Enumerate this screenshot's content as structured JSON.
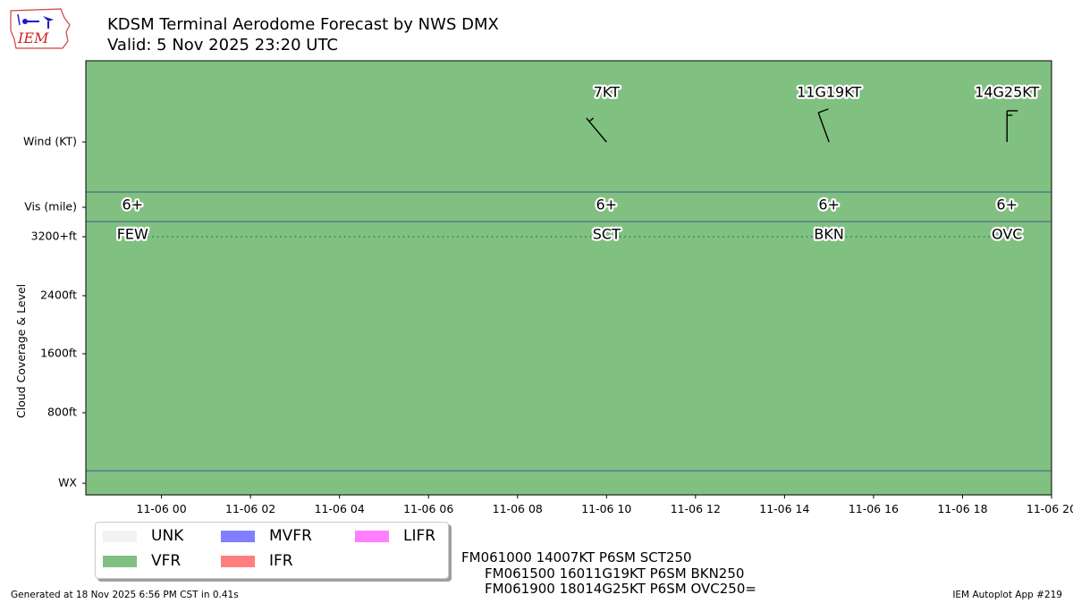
{
  "title": "KDSM Terminal Aerodome Forecast by NWS DMX",
  "subtitle": "Valid: 5 Nov 2025 23:20 UTC",
  "logo_text": "IEM",
  "chart_data": {
    "type": "timeline",
    "x_ticks": [
      "11-06 00",
      "11-06 02",
      "11-06 04",
      "11-06 06",
      "11-06 08",
      "11-06 10",
      "11-06 12",
      "11-06 14",
      "11-06 16",
      "11-06 18",
      "11-06 20"
    ],
    "x_range_hours": [
      -1.7,
      20.0
    ],
    "y_rows": [
      "Wind (KT)",
      "Vis (mile)",
      "WX"
    ],
    "y_cloud_ticks": [
      "3200+ft",
      "2400ft",
      "1600ft",
      "800ft"
    ],
    "y_cloud_label": "Cloud Coverage & Level",
    "background_category": "VFR",
    "forecasts": [
      {
        "hour": -0.65,
        "wind_label": "",
        "wind_dir_deg": null,
        "wind_speed_kt": null,
        "wind_gust_kt": null,
        "vis": "6+",
        "cloud": "FEW",
        "cloud_level": "3200+ft"
      },
      {
        "hour": 10.0,
        "wind_label": "7KT",
        "wind_dir_deg": 140,
        "wind_speed_kt": 7,
        "wind_gust_kt": null,
        "vis": "6+",
        "cloud": "SCT",
        "cloud_level": "3200+ft"
      },
      {
        "hour": 15.0,
        "wind_label": "11G19KT",
        "wind_dir_deg": 160,
        "wind_speed_kt": 11,
        "wind_gust_kt": 19,
        "vis": "6+",
        "cloud": "BKN",
        "cloud_level": "3200+ft"
      },
      {
        "hour": 19.0,
        "wind_label": "14G25KT",
        "wind_dir_deg": 180,
        "wind_speed_kt": 14,
        "wind_gust_kt": 25,
        "vis": "6+",
        "cloud": "OVC",
        "cloud_level": "3200+ft"
      }
    ],
    "legend": [
      {
        "label": "UNK",
        "color": "#f2f2f2"
      },
      {
        "label": "VFR",
        "color": "#80c080"
      },
      {
        "label": "MVFR",
        "color": "#7f7fff"
      },
      {
        "label": "IFR",
        "color": "#ff7f7f"
      },
      {
        "label": "LIFR",
        "color": "#ff7fff"
      }
    ],
    "colors": {
      "vfr": "#80c080",
      "row_line": "#3f5a8f",
      "cloud_line": "#2f7f4f"
    }
  },
  "taf_lines": [
    "FM061000 14007KT P6SM SCT250",
    "FM061500 16011G19KT P6SM BKN250",
    "FM061900 18014G25KT P6SM OVC250="
  ],
  "footer_left": "Generated at 18 Nov 2025 6:56 PM CST in 0.41s",
  "footer_right": "IEM Autoplot App #219"
}
